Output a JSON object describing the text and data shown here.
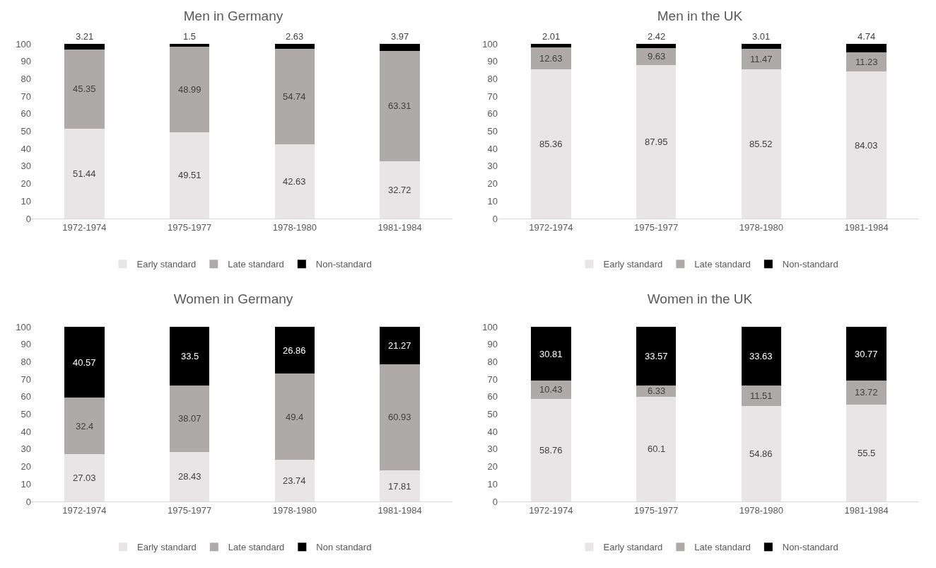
{
  "chart_data": [
    {
      "type": "bar",
      "title": "Men in Germany",
      "stacked": true,
      "data_labels": true,
      "legend": "bottom",
      "categories": [
        "1972-1974",
        "1975-1977",
        "1978-1980",
        "1981-1984"
      ],
      "ylim": [
        0,
        100
      ],
      "yticks": [
        0,
        10,
        20,
        30,
        40,
        50,
        60,
        70,
        80,
        90,
        100
      ],
      "series": [
        {
          "name": "Early standard",
          "color": "#e7e5e5",
          "values": [
            51.44,
            49.51,
            42.63,
            32.72
          ]
        },
        {
          "name": "Late standard",
          "color": "#aeaaaa",
          "values": [
            45.35,
            48.99,
            54.74,
            63.31
          ]
        },
        {
          "name": "Non-standard",
          "color": "#000000",
          "values": [
            3.21,
            1.5,
            2.63,
            3.97
          ]
        }
      ]
    },
    {
      "type": "bar",
      "title": "Men in the UK",
      "stacked": true,
      "data_labels": true,
      "legend": "bottom",
      "categories": [
        "1972-1974",
        "1975-1977",
        "1978-1980",
        "1981-1984"
      ],
      "ylim": [
        0,
        100
      ],
      "yticks": [
        0,
        10,
        20,
        30,
        40,
        50,
        60,
        70,
        80,
        90,
        100
      ],
      "series": [
        {
          "name": "Early standard",
          "color": "#e7e5e5",
          "values": [
            85.36,
            87.95,
            85.52,
            84.03
          ]
        },
        {
          "name": "Late standard",
          "color": "#aeaaaa",
          "values": [
            12.63,
            9.63,
            11.47,
            11.23
          ]
        },
        {
          "name": "Non-standard",
          "color": "#000000",
          "values": [
            2.01,
            2.42,
            3.01,
            4.74
          ]
        }
      ]
    },
    {
      "type": "bar",
      "title": "Women in Germany",
      "stacked": true,
      "data_labels": true,
      "legend": "bottom",
      "categories": [
        "1972-1974",
        "1975-1977",
        "1978-1980",
        "1981-1984"
      ],
      "ylim": [
        0,
        100
      ],
      "yticks": [
        0,
        10,
        20,
        30,
        40,
        50,
        60,
        70,
        80,
        90,
        100
      ],
      "series": [
        {
          "name": "Early standard",
          "color": "#e7e5e5",
          "values": [
            27.03,
            28.43,
            23.74,
            17.81
          ]
        },
        {
          "name": "Late standard",
          "color": "#aeaaaa",
          "values": [
            32.4,
            38.07,
            49.4,
            60.93
          ]
        },
        {
          "name": "Non standard",
          "color": "#000000",
          "values": [
            40.57,
            33.5,
            26.86,
            21.27
          ]
        }
      ]
    },
    {
      "type": "bar",
      "title": "Women in the UK",
      "stacked": true,
      "data_labels": true,
      "legend": "bottom",
      "categories": [
        "1972-1974",
        "1975-1977",
        "1978-1980",
        "1981-1984"
      ],
      "ylim": [
        0,
        100
      ],
      "yticks": [
        0,
        10,
        20,
        30,
        40,
        50,
        60,
        70,
        80,
        90,
        100
      ],
      "series": [
        {
          "name": "Early standard",
          "color": "#e7e5e5",
          "values": [
            58.76,
            60.1,
            54.86,
            55.5
          ]
        },
        {
          "name": "Late standard",
          "color": "#aeaaaa",
          "values": [
            10.43,
            6.33,
            11.51,
            13.72
          ]
        },
        {
          "name": "Non-standard",
          "color": "#000000",
          "values": [
            30.81,
            33.57,
            33.63,
            30.77
          ]
        }
      ]
    }
  ]
}
